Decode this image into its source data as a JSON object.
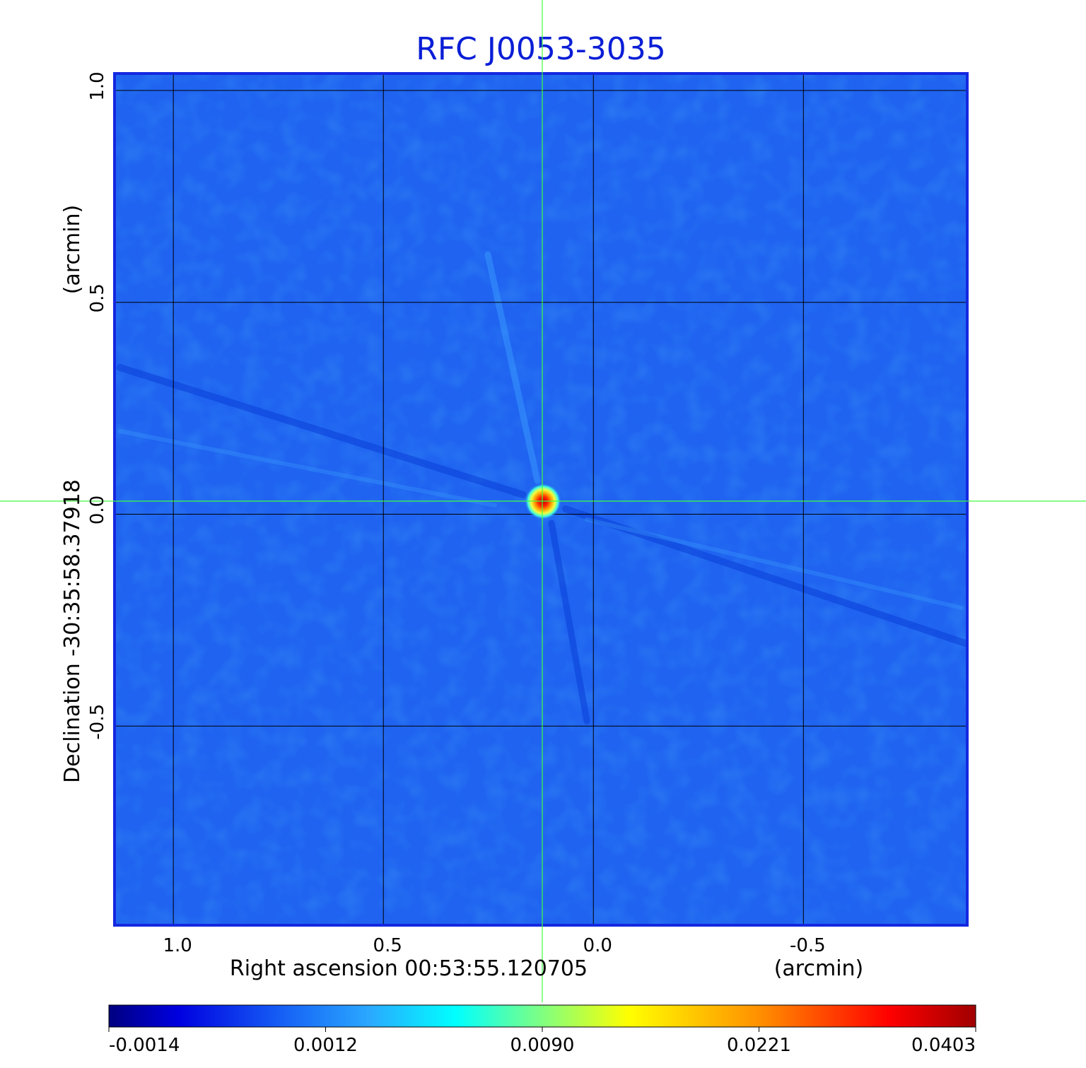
{
  "chart_data": {
    "type": "heatmap",
    "title": "RFC J0053-3035",
    "xlabel": "Right ascension  00:53:55.120705",
    "xunit": "(arcmin)",
    "ylabel": "Declination  -30:35:58.37918",
    "yunit": "(arcmin)",
    "x_ticks": [
      "1.0",
      "0.5",
      "0.0",
      "-0.5"
    ],
    "x_tick_values": [
      1.0,
      0.5,
      0.0,
      -0.5
    ],
    "y_ticks": [
      "1.0",
      "0.5",
      "0.0",
      "-0.5"
    ],
    "y_tick_values": [
      1.0,
      0.5,
      0.0,
      -0.5
    ],
    "xlim": [
      1.14,
      -0.89
    ],
    "ylim": [
      -0.97,
      1.04
    ],
    "grid": true,
    "crosshair": {
      "x": 0.12,
      "y": 0.025
    },
    "source": {
      "x": 0.12,
      "y": 0.03,
      "peak": 0.0403
    },
    "colorbar": {
      "ticks": [
        "-0.0014",
        "0.0012",
        "0.0090",
        "0.0221",
        "0.0403"
      ],
      "colormap": "jet"
    },
    "colors": {
      "background_blue": "#1f63f0",
      "title": "#0a1ed6",
      "frame": "#1428e0",
      "crosshair": "#40ff40"
    }
  }
}
